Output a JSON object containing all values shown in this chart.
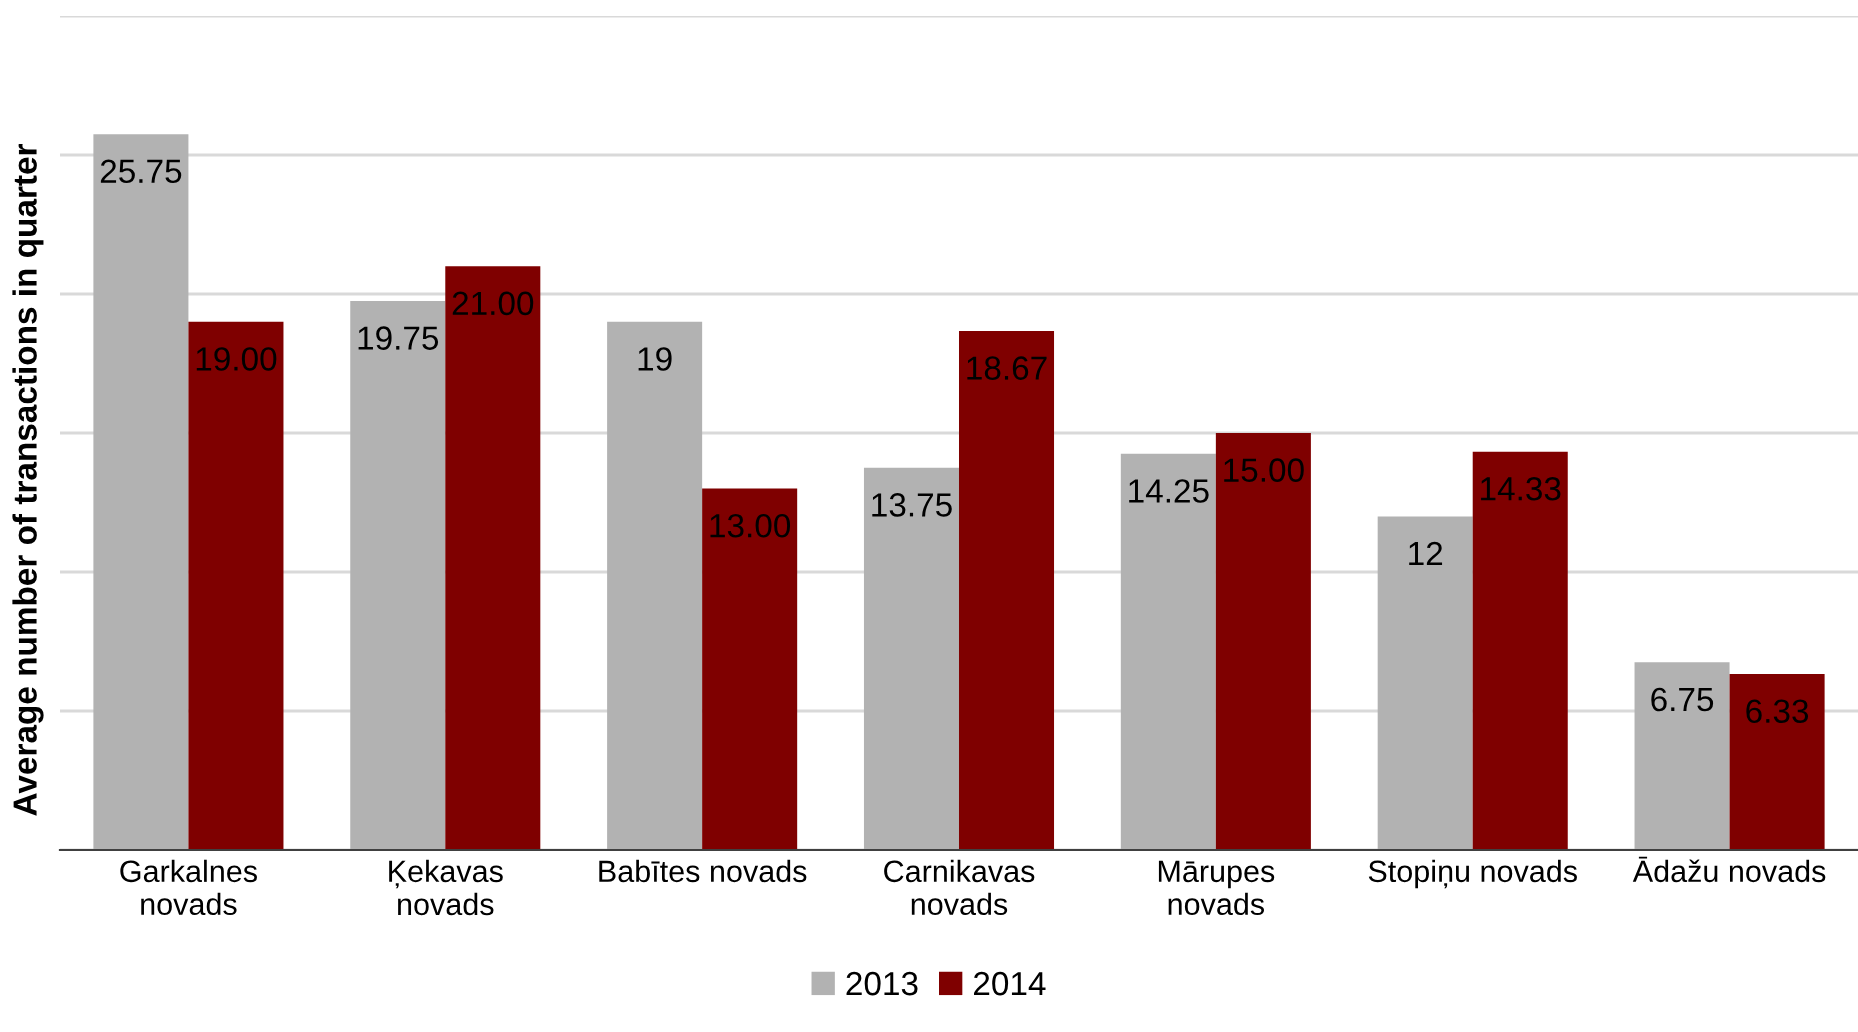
{
  "chart_data": {
    "type": "bar",
    "ylabel": "Average number of transactions in quarter",
    "categories": [
      "Garkalnes\nnovads",
      "Ķekavas\nnovads",
      "Babītes novads",
      "Carnikavas\nnovads",
      "Mārupes\nnovads",
      "Stopiņu novads",
      "Ādažu novads"
    ],
    "series": [
      {
        "name": "2013",
        "color": "#b2b2b2",
        "values": [
          25.75,
          19.75,
          19,
          13.75,
          14.25,
          12,
          6.75
        ],
        "value_labels": [
          "25.75",
          "19.75",
          "19",
          "13.75",
          "14.25",
          "12",
          "6.75"
        ]
      },
      {
        "name": "2014",
        "color": "#7f0000",
        "values": [
          19.0,
          21.0,
          13.0,
          18.67,
          15.0,
          14.33,
          6.33
        ],
        "value_labels": [
          "19.00",
          "21.00",
          "13.00",
          "18.67",
          "15.00",
          "14.33",
          "6.33"
        ]
      }
    ],
    "ylim": [
      0,
      30
    ],
    "yticks": [
      {
        "value": 0,
        "label": null
      },
      {
        "value": 5,
        "label": null
      },
      {
        "value": 10,
        "label": null
      },
      {
        "value": 15,
        "label": null
      },
      {
        "value": 20,
        "label": null
      },
      {
        "value": 25,
        "label": null
      },
      {
        "value": 30,
        "label": null
      }
    ],
    "tick_labels": "x",
    "grid": "y",
    "legend": "bottom"
  }
}
